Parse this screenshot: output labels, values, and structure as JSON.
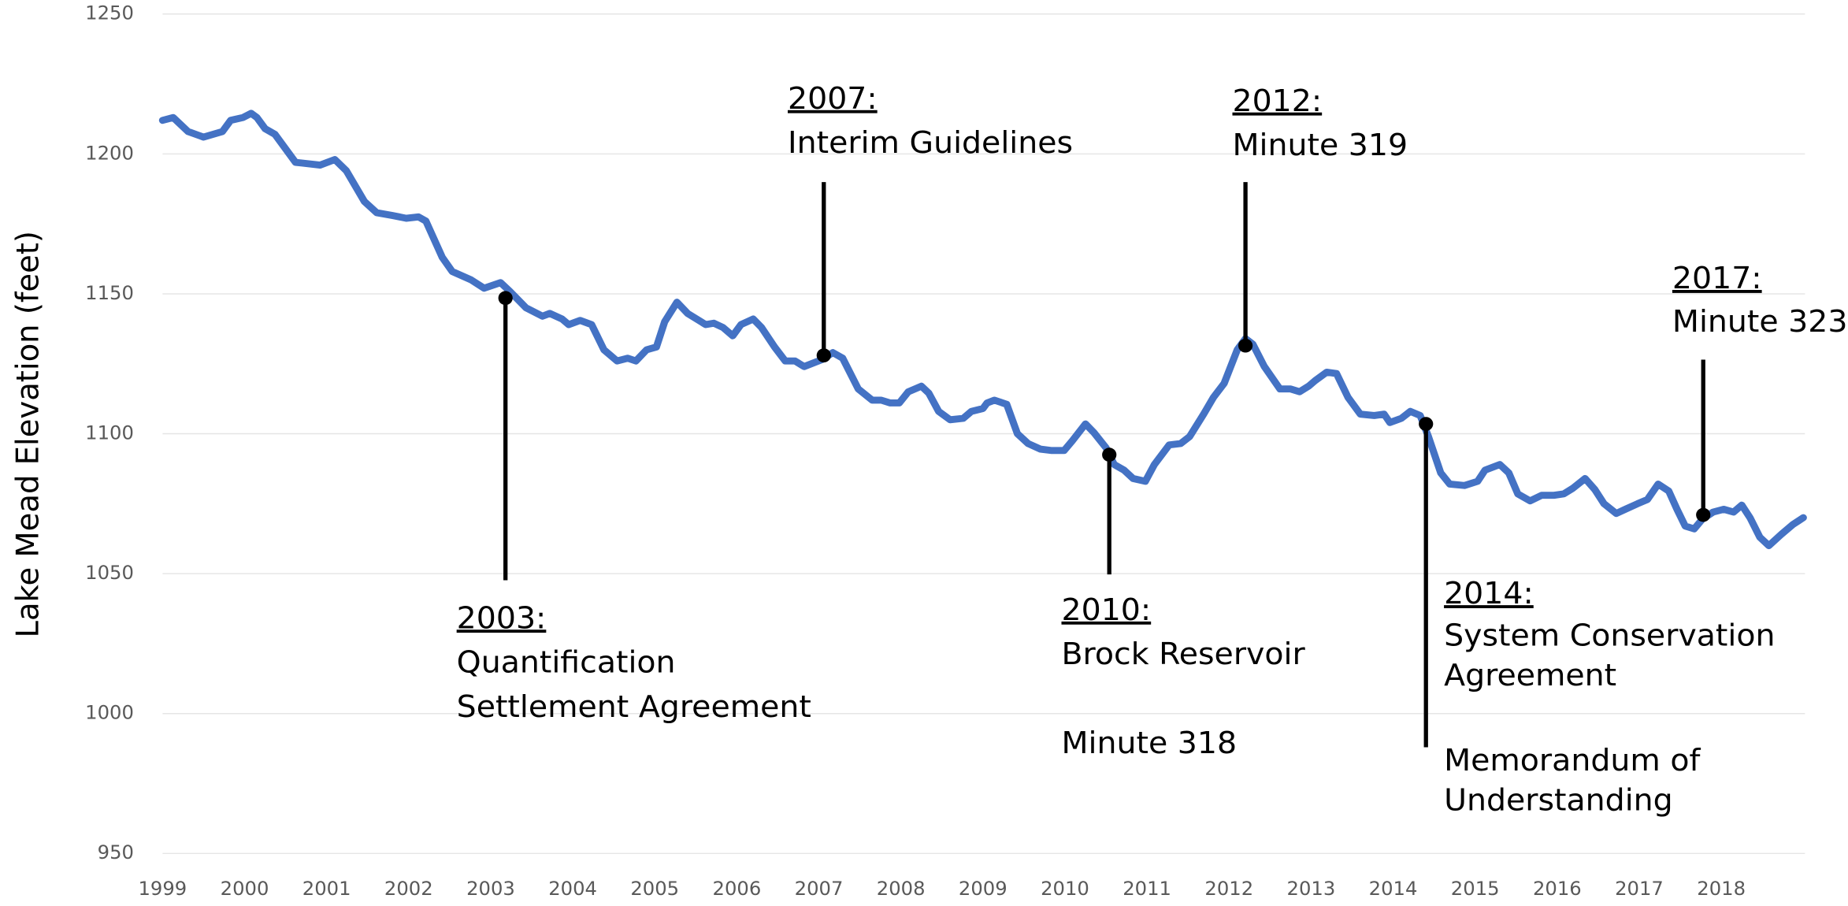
{
  "chart_data": {
    "type": "line",
    "y_label": "Lake Mead Elevation (feet)",
    "xlim": [
      1999,
      2019.02
    ],
    "xticks": [
      1999,
      2000,
      2001,
      2002,
      2003,
      2004,
      2005,
      2006,
      2007,
      2008,
      2009,
      2010,
      2011,
      2012,
      2013,
      2014,
      2015,
      2016,
      2017,
      2018
    ],
    "ylim": [
      950,
      1250
    ],
    "yticks": [
      950,
      1000,
      1050,
      1100,
      1150,
      1200,
      1250
    ],
    "grid": true,
    "series": [
      {
        "color": "#4472c4",
        "x": [
          1999.0,
          1999.13,
          1999.31,
          1999.5,
          1999.73,
          1999.83,
          1999.98,
          2000.08,
          2000.15,
          2000.25,
          2000.37,
          2000.62,
          2000.92,
          2001.1,
          2001.24,
          2001.46,
          2001.61,
          2001.8,
          2001.97,
          2002.12,
          2002.21,
          2002.41,
          2002.53,
          2002.76,
          2002.92,
          2003.12,
          2003.23,
          2003.43,
          2003.63,
          2003.72,
          2003.87,
          2003.95,
          2004.09,
          2004.23,
          2004.38,
          2004.54,
          2004.67,
          2004.77,
          2004.9,
          2005.02,
          2005.12,
          2005.27,
          2005.4,
          2005.62,
          2005.72,
          2005.83,
          2005.95,
          2006.05,
          2006.2,
          2006.3,
          2006.46,
          2006.59,
          2006.71,
          2006.82,
          2007.04,
          2007.17,
          2007.29,
          2007.48,
          2007.65,
          2007.76,
          2007.87,
          2007.98,
          2008.09,
          2008.25,
          2008.34,
          2008.46,
          2008.6,
          2008.76,
          2008.86,
          2009.0,
          2009.05,
          2009.14,
          2009.29,
          2009.42,
          2009.55,
          2009.7,
          2009.84,
          2009.99,
          2010.09,
          2010.25,
          2010.35,
          2010.5,
          2010.6,
          2010.72,
          2010.83,
          2010.98,
          2011.09,
          2011.27,
          2011.41,
          2011.52,
          2011.69,
          2011.81,
          2011.94,
          2012.1,
          2012.2,
          2012.29,
          2012.43,
          2012.62,
          2012.75,
          2012.86,
          2012.97,
          2013.05,
          2013.19,
          2013.31,
          2013.45,
          2013.6,
          2013.77,
          2013.89,
          2013.96,
          2014.1,
          2014.21,
          2014.33,
          2014.43,
          2014.58,
          2014.69,
          2014.87,
          2015.03,
          2015.12,
          2015.3,
          2015.41,
          2015.52,
          2015.67,
          2015.81,
          2015.96,
          2016.08,
          2016.19,
          2016.34,
          2016.46,
          2016.57,
          2016.72,
          2016.83,
          2016.98,
          2017.1,
          2017.23,
          2017.36,
          2017.46,
          2017.56,
          2017.67,
          2017.77,
          2017.9,
          2018.03,
          2018.15,
          2018.25,
          2018.35,
          2018.47,
          2018.58,
          2018.73,
          2018.87,
          2019.0
        ],
        "values": [
          1212,
          1213,
          1208,
          1206,
          1208,
          1212,
          1213,
          1214.5,
          1213,
          1209,
          1207,
          1197,
          1196,
          1198,
          1194,
          1183,
          1179,
          1178,
          1177,
          1177.5,
          1176,
          1163,
          1158,
          1155,
          1152,
          1154,
          1151,
          1145,
          1142,
          1143,
          1141,
          1139,
          1140.5,
          1139,
          1130,
          1126,
          1127,
          1126,
          1130,
          1131,
          1140,
          1147,
          1143,
          1139,
          1139.5,
          1138,
          1135,
          1139,
          1141,
          1138,
          1131,
          1126,
          1126,
          1124,
          1126.5,
          1129,
          1127,
          1116,
          1112,
          1112,
          1111,
          1111,
          1115,
          1117,
          1114.5,
          1108,
          1105,
          1105.5,
          1108,
          1109,
          1111,
          1112,
          1110.5,
          1100,
          1096.5,
          1094.5,
          1094,
          1094,
          1097.5,
          1103.5,
          1100.5,
          1095,
          1089,
          1087,
          1084,
          1083,
          1089,
          1096,
          1096.5,
          1099,
          1107,
          1113,
          1118,
          1130,
          1134,
          1132,
          1124,
          1116,
          1116,
          1115,
          1117,
          1119,
          1122,
          1121.5,
          1113,
          1107,
          1106.5,
          1107,
          1104,
          1105.5,
          1108,
          1106.5,
          1099,
          1086,
          1082,
          1081.5,
          1083,
          1087,
          1089,
          1086,
          1078.5,
          1076,
          1078,
          1078,
          1078.5,
          1080.5,
          1084,
          1080,
          1075,
          1071.5,
          1073,
          1075,
          1076.5,
          1082,
          1079.5,
          1073,
          1067,
          1066,
          1069.5,
          1072,
          1073,
          1072,
          1074.5,
          1070,
          1063,
          1060,
          1064,
          1067.5,
          1070
        ]
      }
    ],
    "annotations": [
      {
        "heading": "2003:",
        "lines": [
          "Quantification",
          "Settlement Agreement"
        ],
        "x": 2003.18,
        "y": 1148.5
      },
      {
        "heading": "2007:",
        "lines": [
          "Interim Guidelines"
        ],
        "x": 2007.06,
        "y": 1128
      },
      {
        "heading": "2010:",
        "lines": [
          "Brock Reservoir",
          "Minute 318"
        ],
        "x": 2010.54,
        "y": 1092.5
      },
      {
        "heading": "2012:",
        "lines": [
          "Minute 319"
        ],
        "x": 2012.2,
        "y": 1131.5
      },
      {
        "heading": "2014:",
        "lines": [
          "System Conservation",
          "Agreement",
          "Memorandum of",
          "Understanding"
        ],
        "x": 2014.4,
        "y": 1103.5
      },
      {
        "heading": "2017:",
        "lines": [
          "Minute 323"
        ],
        "x": 2017.78,
        "y": 1071
      }
    ]
  }
}
